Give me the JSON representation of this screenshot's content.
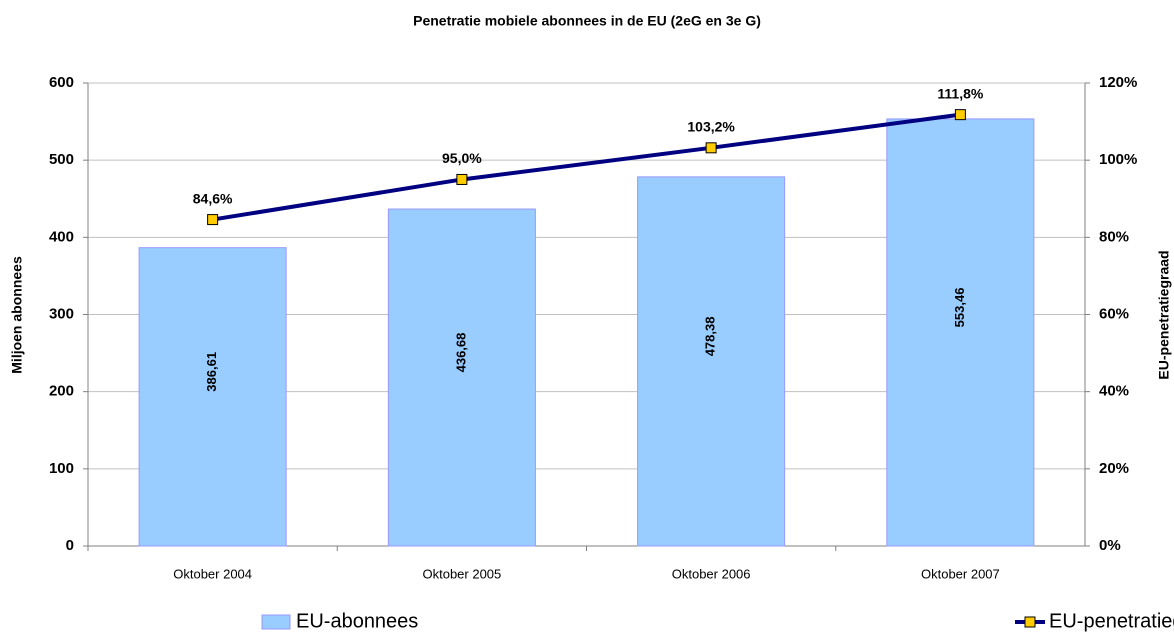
{
  "chart_data": {
    "type": "bar",
    "title": "Penetratie mobiele abonnees in de EU (2eG en 3e G)",
    "y_label": "Miljoen abonnees",
    "y2_label": "EU-penetratiegraad",
    "categories": [
      "Oktober 2004",
      "Oktober 2005",
      "Oktober 2006",
      "Oktober 2007"
    ],
    "series": [
      {
        "name": "EU-abonnees",
        "type": "bar",
        "color": "#99ccff",
        "values": [
          386.61,
          436.68,
          478.38,
          553.46
        ],
        "value_labels": [
          "386,61",
          "436,68",
          "478,38",
          "553,46"
        ]
      },
      {
        "name": "EU-penetratiegraad",
        "type": "line",
        "axis": "y2",
        "color": "#000080",
        "marker_color": "#ffcc00",
        "values": [
          84.6,
          95.0,
          103.2,
          111.8
        ],
        "value_labels": [
          "84,6%",
          "95,0%",
          "103,2%",
          "111,8%"
        ]
      }
    ],
    "ylim": [
      0,
      600
    ],
    "yticks": [
      0,
      100,
      200,
      300,
      400,
      500,
      600
    ],
    "y2lim": [
      0,
      120
    ],
    "y2ticks": [
      {
        "value": 0,
        "label": "0%"
      },
      {
        "value": 20,
        "label": "20%"
      },
      {
        "value": 40,
        "label": "40%"
      },
      {
        "value": 60,
        "label": "60%"
      },
      {
        "value": 80,
        "label": "80%"
      },
      {
        "value": 100,
        "label": "100%"
      },
      {
        "value": 120,
        "label": "120%"
      }
    ],
    "grid": true,
    "legend": "bottom"
  }
}
